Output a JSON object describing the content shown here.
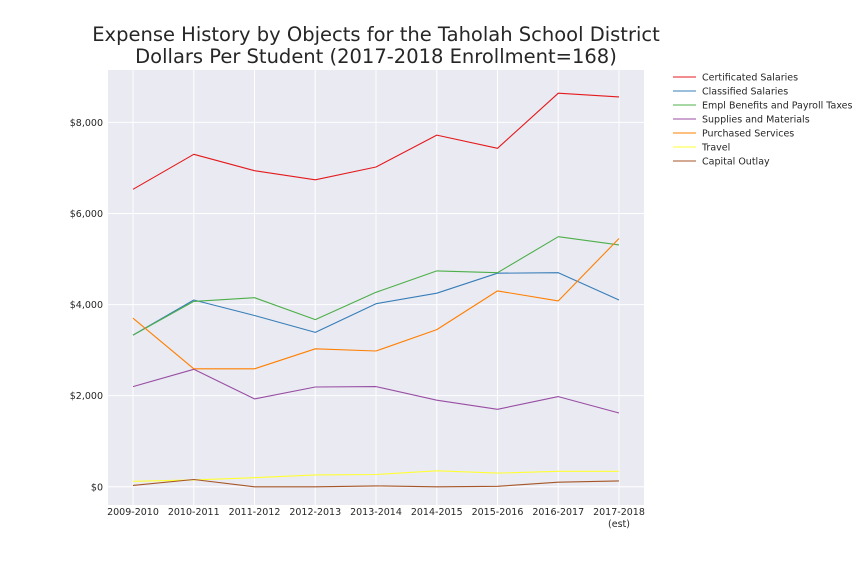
{
  "chart_data": {
    "type": "line",
    "title_lines": [
      "Expense History by Objects for the Taholah School District",
      "Dollars Per Student (2017-2018 Enrollment=168)"
    ],
    "categories": [
      "2009-2010",
      "2010-2011",
      "2011-2012",
      "2012-2013",
      "2013-2014",
      "2014-2015",
      "2015-2016",
      "2016-2017",
      "2017-2018"
    ],
    "category_sublabels": [
      "",
      "",
      "",
      "",
      "",
      "",
      "",
      "",
      "(est)"
    ],
    "ylim": [
      -400,
      9150
    ],
    "yticks": [
      0,
      2000,
      4000,
      6000,
      8000
    ],
    "ytick_labels": [
      "$0",
      "$2,000",
      "$4,000",
      "$6,000",
      "$8,000"
    ],
    "grid": true,
    "legend_position": "outside-top-right",
    "series": [
      {
        "name": "Certificated Salaries",
        "color": "#e41a1c",
        "values": [
          6530,
          7300,
          6940,
          6740,
          7020,
          7720,
          7430,
          8640,
          8560
        ]
      },
      {
        "name": "Classified Salaries",
        "color": "#377eb8",
        "values": [
          3330,
          4100,
          3760,
          3390,
          4020,
          4250,
          4690,
          4700,
          4100
        ]
      },
      {
        "name": "Empl Benefits and Payroll Taxes",
        "color": "#4daf4a",
        "values": [
          3330,
          4070,
          4150,
          3670,
          4270,
          4740,
          4700,
          5490,
          5310
        ]
      },
      {
        "name": "Supplies and Materials",
        "color": "#984ea3",
        "values": [
          2200,
          2580,
          1930,
          2190,
          2200,
          1900,
          1700,
          1980,
          1620
        ]
      },
      {
        "name": "Purchased Services",
        "color": "#ff7f00",
        "values": [
          3700,
          2590,
          2590,
          3030,
          2980,
          3450,
          4300,
          4080,
          5450
        ]
      },
      {
        "name": "Travel",
        "color": "#ffff33",
        "values": [
          120,
          150,
          200,
          260,
          270,
          350,
          300,
          340,
          340
        ]
      },
      {
        "name": "Capital Outlay",
        "color": "#a65628",
        "values": [
          30,
          160,
          0,
          0,
          20,
          0,
          10,
          100,
          130
        ]
      }
    ]
  }
}
